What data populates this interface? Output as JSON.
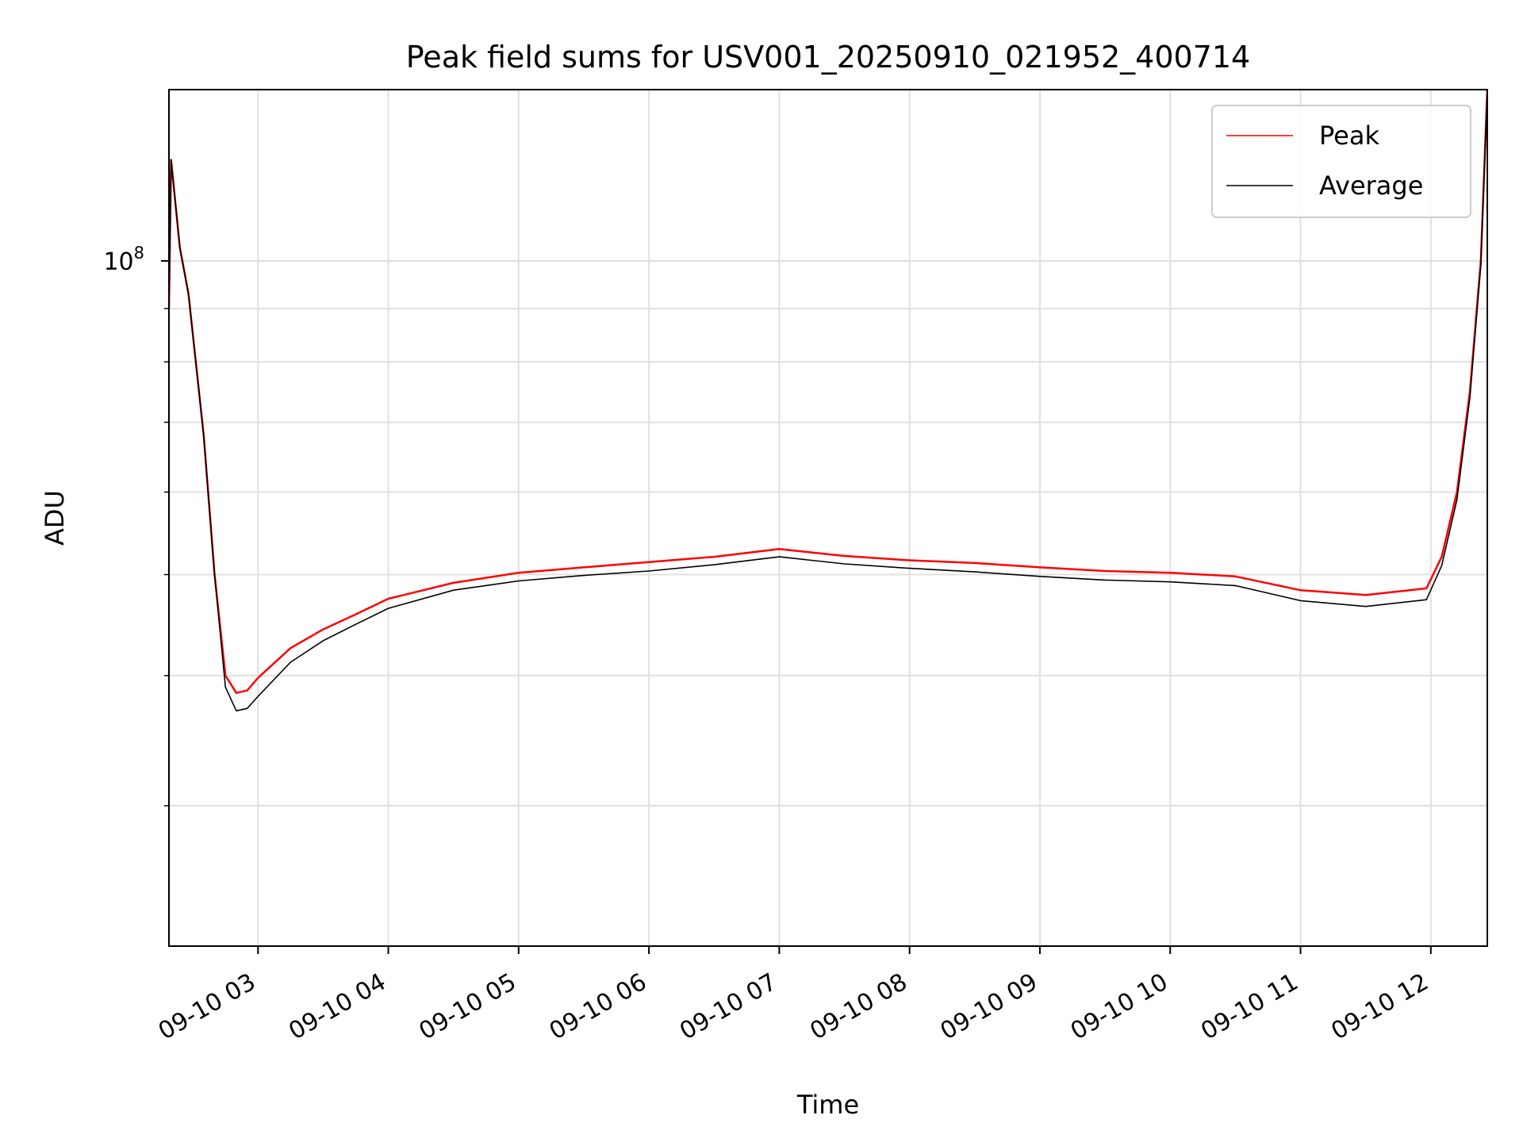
{
  "chart_data": {
    "type": "line",
    "title": "Peak field sums for USV001_20250910_021952_400714",
    "xlabel": "Time",
    "ylabel": "ADU",
    "yscale": "log",
    "ylim": [
      22000000,
      146000000
    ],
    "xlim": [
      "2025-09-10 02:19",
      "2025-09-10 12:26"
    ],
    "x_ticks": [
      "09-10 03",
      "09-10 04",
      "09-10 05",
      "09-10 06",
      "09-10 07",
      "09-10 08",
      "09-10 09",
      "09-10 10",
      "09-10 11",
      "09-10 12"
    ],
    "y_tick_base": "10",
    "y_tick_exp": "8",
    "y_minor_ticks": [
      30000000,
      40000000,
      50000000,
      60000000,
      70000000,
      80000000,
      90000000
    ],
    "grid": true,
    "legend_position": "upper-right",
    "series": [
      {
        "name": "Peak",
        "color": "#ff0000",
        "x": [
          "2025-09-10 02:19",
          "2025-09-10 02:20",
          "2025-09-10 02:24",
          "2025-09-10 02:28",
          "2025-09-10 02:35",
          "2025-09-10 02:40",
          "2025-09-10 02:45",
          "2025-09-10 02:50",
          "2025-09-10 02:55",
          "2025-09-10 03:00",
          "2025-09-10 03:15",
          "2025-09-10 03:30",
          "2025-09-10 03:45",
          "2025-09-10 04:00",
          "2025-09-10 04:30",
          "2025-09-10 05:00",
          "2025-09-10 05:30",
          "2025-09-10 06:00",
          "2025-09-10 06:30",
          "2025-09-10 07:00",
          "2025-09-10 07:30",
          "2025-09-10 08:00",
          "2025-09-10 08:30",
          "2025-09-10 09:00",
          "2025-09-10 09:30",
          "2025-09-10 10:00",
          "2025-09-10 10:30",
          "2025-09-10 11:00",
          "2025-09-10 11:30",
          "2025-09-10 11:58",
          "2025-09-10 12:05",
          "2025-09-10 12:12",
          "2025-09-10 12:18",
          "2025-09-10 12:23",
          "2025-09-10 12:26"
        ],
        "y": [
          90000000,
          125000000,
          103000000,
          93000000,
          68000000,
          50000000,
          40000000,
          38500000,
          38700000,
          39800000,
          42500000,
          44300000,
          45800000,
          47400000,
          49100000,
          50200000,
          50800000,
          51400000,
          52000000,
          52900000,
          52100000,
          51600000,
          51300000,
          50800000,
          50400000,
          50200000,
          49800000,
          48300000,
          47800000,
          48500000,
          52000000,
          60000000,
          75000000,
          100000000,
          146000000
        ]
      },
      {
        "name": "Average",
        "color": "#000000",
        "x": [
          "2025-09-10 02:19",
          "2025-09-10 02:20",
          "2025-09-10 02:24",
          "2025-09-10 02:28",
          "2025-09-10 02:35",
          "2025-09-10 02:40",
          "2025-09-10 02:45",
          "2025-09-10 02:50",
          "2025-09-10 02:55",
          "2025-09-10 03:00",
          "2025-09-10 03:15",
          "2025-09-10 03:30",
          "2025-09-10 03:45",
          "2025-09-10 04:00",
          "2025-09-10 04:30",
          "2025-09-10 05:00",
          "2025-09-10 05:30",
          "2025-09-10 06:00",
          "2025-09-10 06:30",
          "2025-09-10 07:00",
          "2025-09-10 07:30",
          "2025-09-10 08:00",
          "2025-09-10 08:30",
          "2025-09-10 09:00",
          "2025-09-10 09:30",
          "2025-09-10 10:00",
          "2025-09-10 10:30",
          "2025-09-10 11:00",
          "2025-09-10 11:30",
          "2025-09-10 11:58",
          "2025-09-10 12:05",
          "2025-09-10 12:12",
          "2025-09-10 12:18",
          "2025-09-10 12:23",
          "2025-09-10 12:26"
        ],
        "y": [
          90000000,
          125000000,
          103000000,
          93000000,
          68000000,
          50000000,
          39000000,
          37000000,
          37200000,
          38200000,
          41200000,
          43200000,
          44800000,
          46400000,
          48300000,
          49300000,
          49900000,
          50400000,
          51100000,
          52000000,
          51200000,
          50700000,
          50300000,
          49800000,
          49400000,
          49200000,
          48800000,
          47200000,
          46600000,
          47300000,
          51000000,
          59000000,
          74000000,
          99000000,
          146000000
        ]
      }
    ]
  }
}
